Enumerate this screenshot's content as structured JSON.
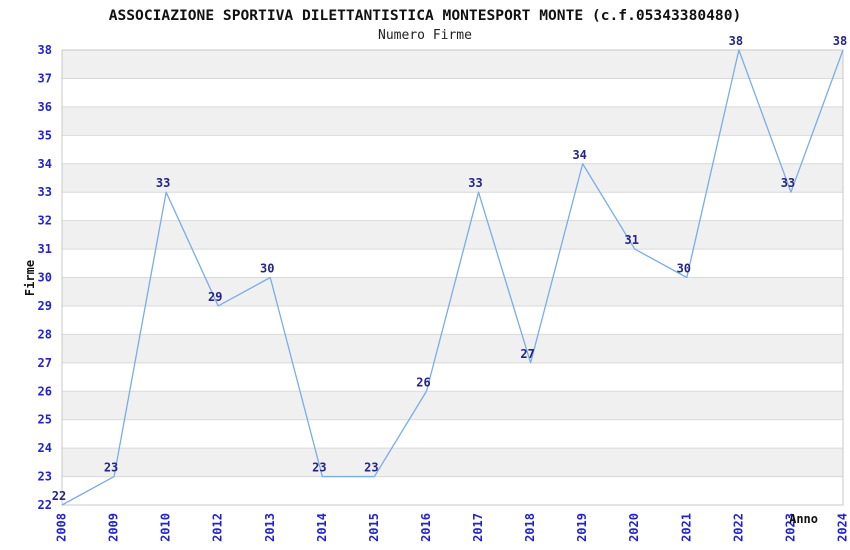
{
  "chart_data": {
    "type": "line",
    "title": "ASSOCIAZIONE SPORTIVA DILETTANTISTICA MONTESPORT MONTE (c.f.05343380480)",
    "subtitle": "Numero Firme",
    "xlabel": "Anno",
    "ylabel": "Firme",
    "categories": [
      "2008",
      "2009",
      "2010",
      "2012",
      "2013",
      "2014",
      "2015",
      "2016",
      "2017",
      "2018",
      "2019",
      "2020",
      "2021",
      "2022",
      "2023",
      "2024"
    ],
    "values": [
      22,
      23,
      33,
      29,
      30,
      23,
      23,
      26,
      33,
      27,
      34,
      31,
      30,
      38,
      33,
      38
    ],
    "ylim": [
      22,
      38
    ],
    "ytick_step": 1,
    "grid": true,
    "legend": "none",
    "band_pattern": "alternating-horizontal",
    "colors": {
      "line": "#79ade7",
      "tick_label": "#2323cc",
      "value_label": "#252585",
      "band": "#f0f0f0",
      "band_alt": "#ffffff",
      "gridline": "#d9d9d9",
      "border": "#c8c8c8",
      "title": "#111111",
      "subtitle": "#222222"
    }
  }
}
